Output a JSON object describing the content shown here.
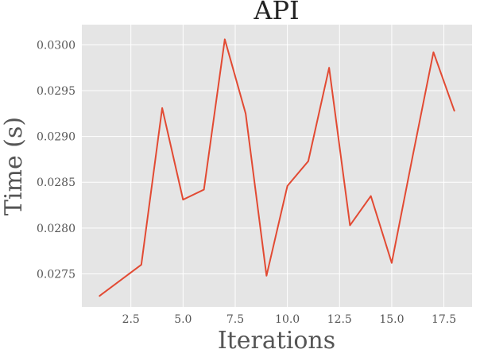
{
  "chart_data": {
    "type": "line",
    "title": "API",
    "xlabel": "Iterations",
    "ylabel": "Time (s)",
    "xlim": [
      0.15,
      18.85
    ],
    "ylim": [
      0.02714,
      0.03022
    ],
    "xticks": [
      2.5,
      5.0,
      7.5,
      10.0,
      12.5,
      15.0,
      17.5
    ],
    "xtick_labels": [
      "2.5",
      "5.0",
      "7.5",
      "10.0",
      "12.5",
      "15.0",
      "17.5"
    ],
    "yticks": [
      0.0275,
      0.028,
      0.0285,
      0.029,
      0.0295,
      0.03
    ],
    "ytick_labels": [
      "0.0275",
      "0.0280",
      "0.0285",
      "0.0290",
      "0.0295",
      "0.0300"
    ],
    "grid": true,
    "background": "#e5e5e5",
    "grid_color": "#ffffff",
    "series": [
      {
        "color": "#e24a33",
        "x": [
          1,
          2,
          3,
          4,
          5,
          6,
          7,
          8,
          9,
          10,
          11,
          12,
          13,
          14,
          15,
          16,
          17,
          18
        ],
        "y": [
          0.02726,
          0.02743,
          0.0276,
          0.02931,
          0.02831,
          0.02842,
          0.03006,
          0.02925,
          0.02748,
          0.02846,
          0.02873,
          0.02975,
          0.02803,
          0.02835,
          0.02762,
          0.02878,
          0.02992,
          0.02928
        ]
      }
    ]
  }
}
